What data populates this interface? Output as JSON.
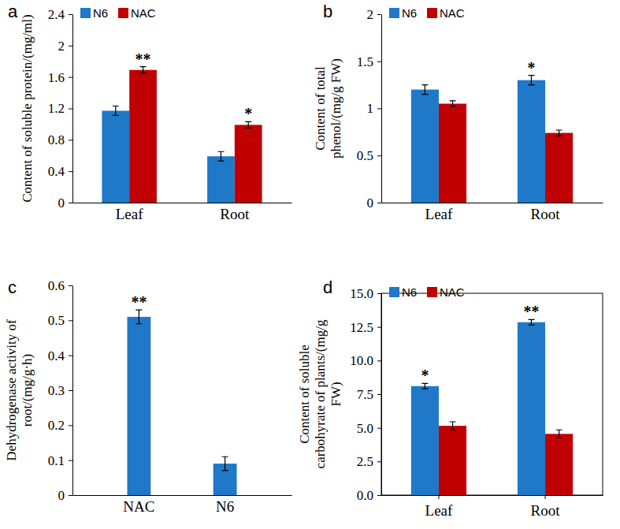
{
  "chart_data": [
    {
      "type": "bar",
      "title": "a",
      "ylabel": [
        "Content of soluble protein/(mg/ml)"
      ],
      "categories": [
        "Leaf",
        "Root"
      ],
      "series": [
        {
          "name": "N6",
          "color": "#1f78c8",
          "values": [
            1.17,
            0.59
          ],
          "errors": [
            0.06,
            0.06
          ],
          "annotations": [
            null,
            null
          ]
        },
        {
          "name": "NAC",
          "color": "#c00000",
          "values": [
            1.69,
            0.99
          ],
          "errors": [
            0.04,
            0.04
          ],
          "annotations": [
            "**",
            "*"
          ]
        }
      ],
      "ylim": [
        0,
        2.4
      ],
      "yticks": [
        0,
        0.4,
        0.8,
        1.2,
        1.6,
        2,
        2.4
      ],
      "legend": "top left"
    },
    {
      "type": "bar",
      "title": "b",
      "ylabel": [
        "Content of total",
        "phenol/(mg/g FW)"
      ],
      "categories": [
        "Leaf",
        "Root"
      ],
      "series": [
        {
          "name": "N6",
          "color": "#1f78c8",
          "values": [
            1.2,
            1.3
          ],
          "errors": [
            0.05,
            0.05
          ],
          "annotations": [
            null,
            "*"
          ]
        },
        {
          "name": "NAC",
          "color": "#c00000",
          "values": [
            1.05,
            0.74
          ],
          "errors": [
            0.03,
            0.03
          ],
          "annotations": [
            null,
            null
          ]
        }
      ],
      "ylim": [
        0,
        2
      ],
      "yticks": [
        0,
        0.5,
        1,
        1.5,
        2
      ],
      "legend": "top left"
    },
    {
      "type": "bar",
      "title": "c",
      "ylabel": [
        "Dehydrogenase activity of",
        "root/(mg/g·h)"
      ],
      "categories": [
        "NAC",
        "N6"
      ],
      "series": [
        {
          "color": "#1f78c8",
          "values": [
            0.51,
            0.09
          ],
          "errors": [
            0.02,
            0.02
          ],
          "annotations": [
            "**",
            null
          ]
        }
      ],
      "ylim": [
        0,
        0.6
      ],
      "yticks": [
        0,
        0.1,
        0.2,
        0.3,
        0.4,
        0.5,
        0.6
      ]
    },
    {
      "type": "bar",
      "title": "d",
      "ylabel": [
        "Content of soluble",
        "carbohyrate of plants/(mg/g",
        "FW)"
      ],
      "categories": [
        "Leaf",
        "Root"
      ],
      "series": [
        {
          "name": "N6",
          "color": "#1f78c8",
          "values": [
            8.1,
            12.85
          ],
          "errors": [
            0.2,
            0.2
          ],
          "annotations": [
            "*",
            "**"
          ]
        },
        {
          "name": "NAC",
          "color": "#c00000",
          "values": [
            5.15,
            4.55
          ],
          "errors": [
            0.3,
            0.3
          ],
          "annotations": [
            null,
            null
          ]
        }
      ],
      "ylim": [
        0,
        15
      ],
      "yticks": [
        {
          "value": 0,
          "label": "0.0"
        },
        {
          "value": 2.5,
          "label": "2.5"
        },
        {
          "value": 5,
          "label": "5.0"
        },
        {
          "value": 7.5,
          "label": "7.5"
        },
        {
          "value": 10,
          "label": "10.0"
        },
        {
          "value": 12.5,
          "label": "12.5"
        },
        {
          "value": 15,
          "label": "15.0"
        }
      ],
      "legend": "top left"
    }
  ]
}
